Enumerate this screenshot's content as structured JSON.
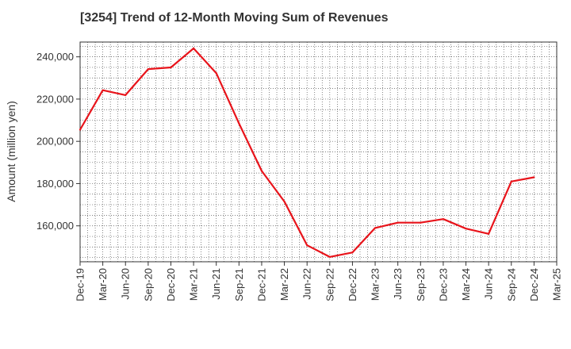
{
  "chart_data": {
    "type": "line",
    "title": "[3254]  Trend of 12-Month Moving Sum of Revenues",
    "xlabel": "",
    "ylabel": "Amount (million yen)",
    "ylim": [
      143000,
      247000
    ],
    "y_ticks": [
      160000,
      180000,
      200000,
      220000,
      240000
    ],
    "y_tick_labels": [
      "160,000",
      "180,000",
      "200,000",
      "220,000",
      "240,000"
    ],
    "x_tick_labels": [
      "Dec-19",
      "Mar-20",
      "Jun-20",
      "Sep-20",
      "Dec-20",
      "Mar-21",
      "Jun-21",
      "Sep-21",
      "Dec-21",
      "Mar-22",
      "Jun-22",
      "Sep-22",
      "Dec-22",
      "Mar-23",
      "Jun-23",
      "Sep-23",
      "Dec-23",
      "Mar-24",
      "Jun-24",
      "Sep-24",
      "Dec-24",
      "Mar-25"
    ],
    "grid": true,
    "line_color": "#e8141b",
    "series": [
      {
        "x": [
          "Dec-19",
          "Mar-20",
          "Jun-20",
          "Sep-20",
          "Dec-20",
          "Mar-21",
          "Jun-21",
          "Sep-21",
          "Dec-21",
          "Mar-22",
          "Jun-22",
          "Sep-22",
          "Dec-22",
          "Mar-23",
          "Jun-23",
          "Sep-23",
          "Dec-23",
          "Mar-24",
          "Jun-24",
          "Sep-24",
          "Dec-24"
        ],
        "values": [
          205500,
          224200,
          221900,
          234200,
          235000,
          244000,
          232300,
          208500,
          186000,
          171500,
          150800,
          145300,
          147400,
          159000,
          161500,
          161500,
          163200,
          158700,
          156200,
          181000,
          183000
        ]
      }
    ]
  }
}
